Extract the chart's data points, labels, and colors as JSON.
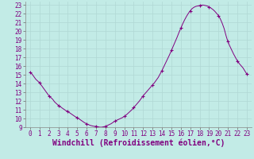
{
  "title": "",
  "xlabel": "Windchill (Refroidissement éolien,°C)",
  "ylabel": "",
  "background_color": "#c2ebe6",
  "grid_color": "#b0d8d4",
  "line_color": "#800080",
  "marker_color": "#800080",
  "xlim": [
    -0.5,
    23.5
  ],
  "ylim": [
    9,
    23.4
  ],
  "yticks": [
    9,
    10,
    11,
    12,
    13,
    14,
    15,
    16,
    17,
    18,
    19,
    20,
    21,
    22,
    23
  ],
  "xticks": [
    0,
    1,
    2,
    3,
    4,
    5,
    6,
    7,
    8,
    9,
    10,
    11,
    12,
    13,
    14,
    15,
    16,
    17,
    18,
    19,
    20,
    21,
    22,
    23
  ],
  "x": [
    0.0,
    0.2,
    0.4,
    0.6,
    0.8,
    1.0,
    1.2,
    1.4,
    1.6,
    1.8,
    2.0,
    2.2,
    2.4,
    2.6,
    2.8,
    3.0,
    3.2,
    3.4,
    3.6,
    3.8,
    4.0,
    4.2,
    4.4,
    4.6,
    4.8,
    5.0,
    5.2,
    5.4,
    5.6,
    5.8,
    6.0,
    6.2,
    6.4,
    6.6,
    6.8,
    7.0,
    7.2,
    7.4,
    7.6,
    7.8,
    8.0,
    8.2,
    8.4,
    8.6,
    8.8,
    9.0,
    9.2,
    9.4,
    9.6,
    9.8,
    10.0,
    10.2,
    10.4,
    10.6,
    10.8,
    11.0,
    11.2,
    11.4,
    11.6,
    11.8,
    12.0,
    12.2,
    12.4,
    12.6,
    12.8,
    13.0,
    13.2,
    13.4,
    13.6,
    13.8,
    14.0,
    14.2,
    14.4,
    14.6,
    14.8,
    15.0,
    15.2,
    15.4,
    15.6,
    15.8,
    16.0,
    16.2,
    16.4,
    16.6,
    16.8,
    17.0,
    17.2,
    17.4,
    17.6,
    17.8,
    18.0,
    18.2,
    18.4,
    18.6,
    18.8,
    19.0,
    19.2,
    19.4,
    19.6,
    19.8,
    20.0,
    20.2,
    20.4,
    20.6,
    20.8,
    21.0,
    21.2,
    21.4,
    21.6,
    21.8,
    22.0,
    22.2,
    22.4,
    22.6,
    22.8,
    23.0
  ],
  "y": [
    15.3,
    15.1,
    14.8,
    14.5,
    14.3,
    14.1,
    13.8,
    13.5,
    13.2,
    12.9,
    12.6,
    12.4,
    12.2,
    11.9,
    11.7,
    11.5,
    11.35,
    11.2,
    11.05,
    10.9,
    10.8,
    10.65,
    10.5,
    10.35,
    10.2,
    10.1,
    9.95,
    9.8,
    9.65,
    9.5,
    9.4,
    9.3,
    9.2,
    9.15,
    9.1,
    9.1,
    9.05,
    9.0,
    9.0,
    9.05,
    9.1,
    9.2,
    9.3,
    9.4,
    9.55,
    9.7,
    9.8,
    9.9,
    10.0,
    10.1,
    10.25,
    10.4,
    10.6,
    10.8,
    11.0,
    11.25,
    11.5,
    11.75,
    12.0,
    12.3,
    12.6,
    12.85,
    13.1,
    13.35,
    13.6,
    13.85,
    14.1,
    14.4,
    14.7,
    15.1,
    15.5,
    15.95,
    16.4,
    16.85,
    17.3,
    17.8,
    18.3,
    18.8,
    19.3,
    19.85,
    20.35,
    20.85,
    21.3,
    21.7,
    22.05,
    22.35,
    22.6,
    22.75,
    22.85,
    22.9,
    22.95,
    23.0,
    23.0,
    22.95,
    22.9,
    22.8,
    22.65,
    22.5,
    22.3,
    22.05,
    21.8,
    21.4,
    20.9,
    20.3,
    19.5,
    18.8,
    18.3,
    17.85,
    17.4,
    17.0,
    16.6,
    16.3,
    16.05,
    15.8,
    15.45,
    15.1
  ],
  "marker_x": [
    0,
    1,
    2,
    3,
    4,
    5,
    6,
    7,
    8,
    9,
    10,
    11,
    12,
    13,
    14,
    15,
    16,
    17,
    18,
    19,
    20,
    21,
    22,
    23
  ],
  "marker_y": [
    15.3,
    14.1,
    12.6,
    11.5,
    10.8,
    10.1,
    9.4,
    9.1,
    9.1,
    9.7,
    10.25,
    11.25,
    12.6,
    13.85,
    15.5,
    17.8,
    20.35,
    22.35,
    22.95,
    22.8,
    21.8,
    18.8,
    16.6,
    15.1
  ],
  "tick_fontsize": 5.5,
  "xlabel_fontsize": 7.0
}
